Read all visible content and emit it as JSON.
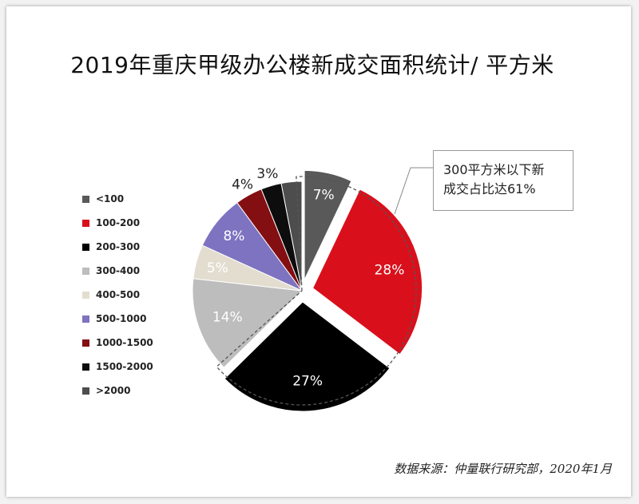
{
  "chart_data": {
    "type": "pie",
    "title": "2019年重庆甲级办公楼新成交面积统计/ 平方米",
    "categories": [
      "<100",
      "100-200",
      "200-300",
      "300-400",
      "400-500",
      "500-1000",
      "1000-1500",
      "1500-2000",
      ">2000"
    ],
    "values": [
      7,
      28,
      27,
      14,
      5,
      8,
      4,
      3,
      3
    ],
    "value_labels": [
      "7%",
      "28%",
      "27%",
      "14%",
      "5%",
      "8%",
      "4%",
      "3%",
      ""
    ],
    "colors": [
      "#595959",
      "#d9101c",
      "#000000",
      "#bdbdbd",
      "#e3ddd0",
      "#7d73c0",
      "#830f12",
      "#0d0d0d",
      "#4d4d4d"
    ],
    "exploded": [
      "<100",
      "100-200",
      "200-300"
    ],
    "legend_position": "left",
    "annotation_lines": [
      "300平方米以下新",
      "成交占比达61%"
    ]
  },
  "source": "数据来源：仲量联行研究部，2020年1月"
}
